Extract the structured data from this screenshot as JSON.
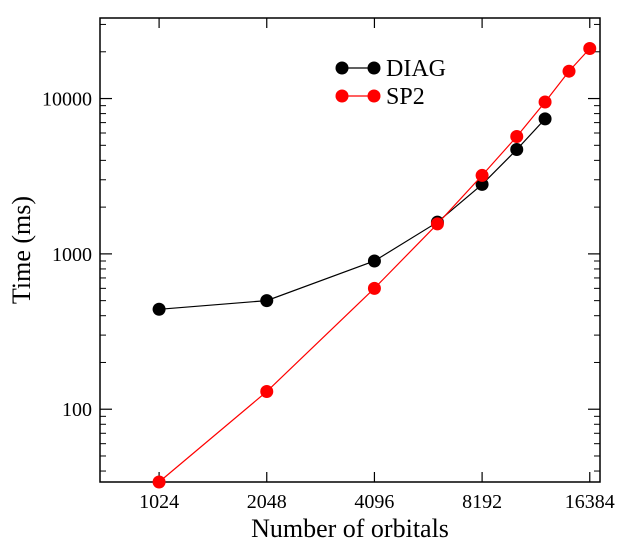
{
  "chart_data": {
    "type": "line",
    "xlabel": "Number of orbitals",
    "ylabel": "Time (ms)",
    "x_scale": "log2",
    "y_scale": "log10",
    "xlim": [
      700,
      17500
    ],
    "ylim": [
      34,
      33000
    ],
    "x_ticks": [
      1024,
      2048,
      4096,
      8192,
      16384
    ],
    "x_tick_labels": [
      "1024",
      "2048",
      "4096",
      "8192",
      "16384"
    ],
    "y_ticks": [
      100,
      1000,
      10000
    ],
    "y_tick_labels": [
      "100",
      "1000",
      "10000"
    ],
    "grid": false,
    "legend_position": "top-center",
    "series": [
      {
        "name": "DIAG",
        "color": "#000000",
        "x": [
          1024,
          2048,
          4096,
          6144,
          8192,
          10240,
          12288
        ],
        "y": [
          440,
          500,
          900,
          1600,
          2800,
          4700,
          7400
        ]
      },
      {
        "name": "SP2",
        "color": "#ff0000",
        "x": [
          1024,
          2048,
          4096,
          6144,
          8192,
          10240,
          12288,
          14336,
          16384
        ],
        "y": [
          34,
          130,
          600,
          1560,
          3200,
          5700,
          9500,
          15000,
          21000
        ]
      }
    ]
  }
}
